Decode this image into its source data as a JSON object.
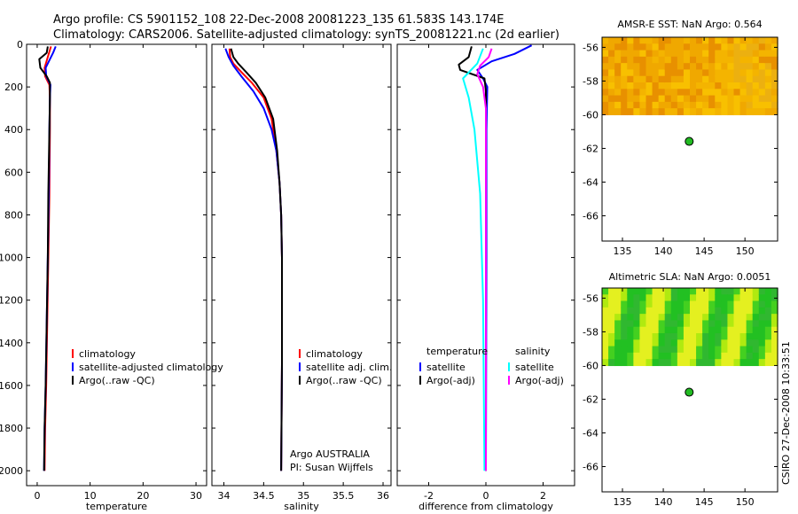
{
  "title_line1": "Argo profile: CS 5901152_108 22-Dec-2008 20081223_135 61.583S 143.174E",
  "title_line2": "Climatology: CARS2006. Satellite-adjusted climatology: synTS_20081221.nc (2d earlier)",
  "watermark": "CSIRO 27-Dec-2008 10:33:51",
  "colors": {
    "red": "#ff0000",
    "blue": "#0000ff",
    "black": "#000000",
    "cyan": "#00ffff",
    "magenta": "#ff00ff"
  },
  "chart_data": [
    {
      "id": "temperature",
      "type": "line",
      "xlabel": "temperature",
      "xlim": [
        -2,
        32
      ],
      "ylim": [
        2070,
        0
      ],
      "xticks": [
        0,
        10,
        20,
        30
      ],
      "xtick_labels": [
        "0",
        "10",
        "20",
        "30"
      ],
      "yticks": [
        0,
        200,
        400,
        600,
        800,
        1000,
        1200,
        1400,
        1600,
        1800,
        2000
      ],
      "ytick_labels": [
        "0",
        "200",
        "400",
        "600",
        "800",
        "1000",
        "1200",
        "1400",
        "1600",
        "1800",
        "2000"
      ],
      "series": [
        {
          "name": "climatology",
          "color": "red",
          "points": [
            [
              2.6,
              10
            ],
            [
              2.0,
              60
            ],
            [
              1.4,
              110
            ],
            [
              1.5,
              150
            ],
            [
              2.3,
              190
            ],
            [
              2.4,
              250
            ],
            [
              2.4,
              400
            ],
            [
              2.3,
              700
            ],
            [
              2.1,
              1000
            ],
            [
              1.9,
              1300
            ],
            [
              1.7,
              1600
            ],
            [
              1.5,
              1800
            ],
            [
              1.4,
              2000
            ]
          ]
        },
        {
          "name": "satellite-adjusted climatology",
          "color": "blue",
          "points": [
            [
              3.5,
              10
            ],
            [
              3.0,
              40
            ],
            [
              2.4,
              70
            ],
            [
              1.6,
              110
            ],
            [
              1.7,
              150
            ],
            [
              2.5,
              190
            ],
            [
              2.4,
              250
            ],
            [
              2.3,
              400
            ],
            [
              2.2,
              700
            ],
            [
              2.0,
              1000
            ],
            [
              1.8,
              1300
            ],
            [
              1.6,
              1600
            ],
            [
              1.4,
              1800
            ],
            [
              1.3,
              2000
            ]
          ]
        },
        {
          "name": "Argo(..raw -QC)",
          "color": "black",
          "points": [
            [
              2.0,
              10
            ],
            [
              1.8,
              40
            ],
            [
              0.4,
              70
            ],
            [
              0.6,
              110
            ],
            [
              1.8,
              150
            ],
            [
              2.4,
              180
            ],
            [
              2.4,
              250
            ],
            [
              2.3,
              400
            ],
            [
              2.1,
              700
            ],
            [
              2.0,
              1000
            ],
            [
              1.8,
              1300
            ],
            [
              1.6,
              1600
            ],
            [
              1.4,
              1800
            ],
            [
              1.3,
              2000
            ]
          ]
        }
      ],
      "legend": {
        "position": "lower-center",
        "entries": [
          {
            "label": "climatology",
            "color": "red"
          },
          {
            "label": "satellite-adjusted climatology",
            "color": "blue"
          },
          {
            "label": "Argo(..raw -QC)",
            "color": "black"
          }
        ]
      }
    },
    {
      "id": "salinity",
      "type": "line",
      "xlabel": "salinity",
      "xlim": [
        33.85,
        36.1
      ],
      "ylim": [
        2070,
        0
      ],
      "xticks": [
        34,
        34.5,
        35,
        35.5,
        36
      ],
      "xtick_labels": [
        "34",
        "34.5",
        "35",
        "35.5",
        "36"
      ],
      "yticks": [
        0,
        200,
        400,
        600,
        800,
        1000,
        1200,
        1400,
        1600,
        1800,
        2000
      ],
      "series": [
        {
          "name": "climatology",
          "color": "red",
          "points": [
            [
              34.07,
              20
            ],
            [
              34.08,
              60
            ],
            [
              34.12,
              90
            ],
            [
              34.22,
              130
            ],
            [
              34.35,
              180
            ],
            [
              34.5,
              250
            ],
            [
              34.6,
              350
            ],
            [
              34.66,
              500
            ],
            [
              34.7,
              650
            ],
            [
              34.72,
              800
            ],
            [
              34.73,
              1000
            ],
            [
              34.73,
              1500
            ],
            [
              34.72,
              2000
            ]
          ]
        },
        {
          "name": "satellite adj. clim.",
          "color": "blue",
          "points": [
            [
              34.02,
              20
            ],
            [
              34.06,
              60
            ],
            [
              34.12,
              100
            ],
            [
              34.22,
              150
            ],
            [
              34.37,
              220
            ],
            [
              34.5,
              300
            ],
            [
              34.6,
              400
            ],
            [
              34.66,
              500
            ],
            [
              34.7,
              650
            ],
            [
              34.72,
              800
            ],
            [
              34.73,
              1000
            ],
            [
              34.73,
              1500
            ],
            [
              34.72,
              2000
            ]
          ]
        },
        {
          "name": "Argo(..raw -QC)",
          "color": "black",
          "points": [
            [
              34.09,
              20
            ],
            [
              34.12,
              60
            ],
            [
              34.18,
              90
            ],
            [
              34.28,
              130
            ],
            [
              34.4,
              180
            ],
            [
              34.52,
              250
            ],
            [
              34.62,
              350
            ],
            [
              34.67,
              500
            ],
            [
              34.7,
              650
            ],
            [
              34.72,
              800
            ],
            [
              34.73,
              1000
            ],
            [
              34.73,
              1500
            ],
            [
              34.72,
              2000
            ]
          ]
        }
      ],
      "legend": {
        "position": "lower-right",
        "entries": [
          {
            "label": "climatology",
            "color": "red"
          },
          {
            "label": "satellite adj. clim.",
            "color": "blue"
          },
          {
            "label": "Argo(..raw -QC)",
            "color": "black"
          }
        ]
      },
      "annotation": [
        "Argo AUSTRALIA",
        "PI: Susan Wijffels"
      ]
    },
    {
      "id": "difference",
      "type": "line",
      "xlabel": "difference from climatology",
      "xlim": [
        -3.1,
        3.1
      ],
      "ylim": [
        2070,
        0
      ],
      "xticks": [
        -2,
        0,
        2
      ],
      "xtick_labels": [
        "-2",
        "0",
        "2"
      ],
      "yticks": [
        0,
        200,
        400,
        600,
        800,
        1000,
        1200,
        1400,
        1600,
        1800,
        2000
      ],
      "series": [
        {
          "name": "temperature satellite",
          "color": "blue",
          "points": [
            [
              1.6,
              5
            ],
            [
              1.0,
              45
            ],
            [
              0.2,
              80
            ],
            [
              -0.3,
              120
            ],
            [
              -0.1,
              160
            ],
            [
              0.05,
              200
            ],
            [
              0.02,
              400
            ],
            [
              0.02,
              1000
            ],
            [
              0.0,
              2000
            ]
          ]
        },
        {
          "name": "temperature Argo(-adj)",
          "color": "black",
          "points": [
            [
              -0.5,
              10
            ],
            [
              -0.6,
              60
            ],
            [
              -0.95,
              95
            ],
            [
              -0.9,
              120
            ],
            [
              -0.05,
              160
            ],
            [
              0.0,
              220
            ],
            [
              0.0,
              1000
            ],
            [
              0.0,
              2000
            ]
          ]
        },
        {
          "name": "salinity satellite",
          "color": "cyan",
          "points": [
            [
              -0.1,
              20
            ],
            [
              -0.3,
              90
            ],
            [
              -0.8,
              160
            ],
            [
              -0.6,
              250
            ],
            [
              -0.4,
              400
            ],
            [
              -0.2,
              700
            ],
            [
              -0.1,
              1200
            ],
            [
              -0.05,
              2000
            ]
          ]
        },
        {
          "name": "salinity Argo(-adj)",
          "color": "magenta",
          "points": [
            [
              0.2,
              20
            ],
            [
              0.1,
              60
            ],
            [
              -0.2,
              100
            ],
            [
              -0.3,
              140
            ],
            [
              -0.1,
              200
            ],
            [
              0.0,
              300
            ],
            [
              0.0,
              2000
            ]
          ]
        }
      ],
      "legend": {
        "position": "lower-center",
        "entries": [
          {
            "label": "temperature",
            "color": null
          },
          {
            "label": "satellite",
            "color": "blue"
          },
          {
            "label": "Argo(-adj)",
            "color": "black"
          },
          {
            "label": "salinity",
            "color": null
          },
          {
            "label": "satellite",
            "color": "cyan"
          },
          {
            "label": "Argo(-adj)",
            "color": "magenta"
          }
        ]
      }
    },
    {
      "id": "sst_map",
      "type": "heatmap",
      "title": "AMSR-E SST: NaN Argo: 0.564",
      "xlim": [
        132.5,
        154
      ],
      "ylim": [
        -67.5,
        -55.4
      ],
      "xticks": [
        135,
        140,
        145,
        150
      ],
      "yticks": [
        -56,
        -58,
        -60,
        -62,
        -64,
        -66
      ],
      "data_lat_range": [
        -60,
        -55.4
      ],
      "profile_location": [
        143.174,
        -61.583
      ]
    },
    {
      "id": "sla_map",
      "type": "heatmap",
      "title": "Altimetric SLA: NaN Argo: 0.0051",
      "xlim": [
        132.5,
        154
      ],
      "ylim": [
        -67.5,
        -55.4
      ],
      "xticks": [
        135,
        140,
        145,
        150
      ],
      "yticks": [
        -56,
        -58,
        -60,
        -62,
        -64,
        -66
      ],
      "data_lat_range": [
        -60,
        -55.4
      ],
      "profile_location": [
        143.174,
        -61.583
      ]
    }
  ]
}
